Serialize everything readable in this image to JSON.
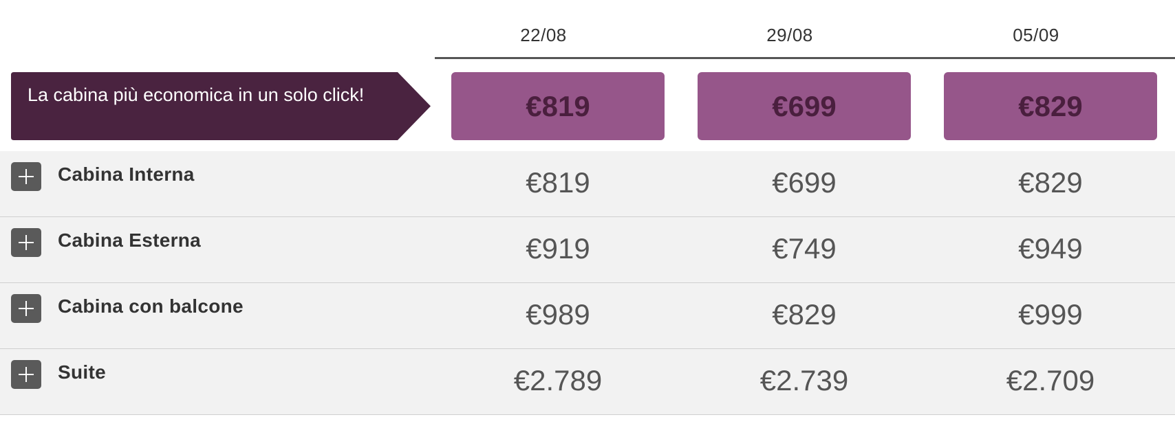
{
  "dates": [
    "22/08",
    "29/08",
    "05/09"
  ],
  "promo": {
    "text": "La cabina più economica in un solo click!"
  },
  "cheapest": [
    "€819",
    "€699",
    "€829"
  ],
  "colors": {
    "promo_bg": "#4a2340",
    "cheapest_bg": "#96568a",
    "cheapest_text": "#4a1f3e",
    "row_bg": "#f2f2f2",
    "toggle_bg": "#5a5a5a"
  },
  "cabins": [
    {
      "name": "Cabina Interna",
      "prices": [
        "€819",
        "€699",
        "€829"
      ]
    },
    {
      "name": "Cabina Esterna",
      "prices": [
        "€919",
        "€749",
        "€949"
      ]
    },
    {
      "name": "Cabina con balcone",
      "prices": [
        "€989",
        "€829",
        "€999"
      ]
    },
    {
      "name": "Suite",
      "prices": [
        "€2.789",
        "€2.739",
        "€2.709"
      ]
    }
  ]
}
